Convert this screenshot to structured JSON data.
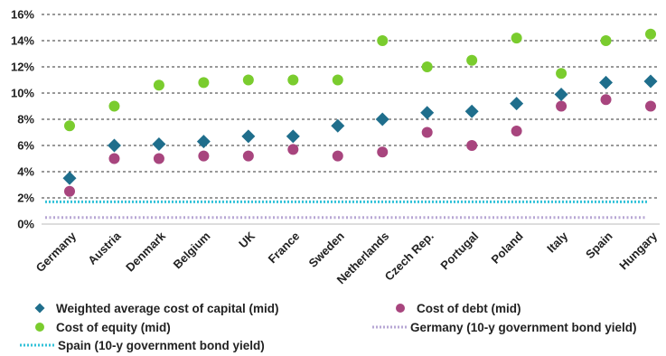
{
  "chart_data": {
    "type": "scatter",
    "categories": [
      "Germany",
      "Austria",
      "Denmark",
      "Belgium",
      "UK",
      "France",
      "Sweden",
      "Netherlands",
      "Czech Rep.",
      "Portugal",
      "Poland",
      "Italy",
      "Spain",
      "Hungary"
    ],
    "y_ticks": [
      "0%",
      "2%",
      "4%",
      "6%",
      "8%",
      "10%",
      "12%",
      "14%",
      "16%"
    ],
    "ylim": [
      0,
      16
    ],
    "grid": "horizontal-dashed",
    "legend_position": "bottom",
    "series": [
      {
        "name": "Weighted average cost of capital (mid)",
        "marker": "diamond",
        "color": "#1f6e8c",
        "values": [
          3.5,
          6.0,
          6.1,
          6.3,
          6.7,
          6.7,
          7.5,
          8.0,
          8.5,
          8.6,
          9.2,
          9.9,
          10.8,
          10.9
        ]
      },
      {
        "name": "Cost of debt (mid)",
        "marker": "circle",
        "color": "#a8457e",
        "values": [
          2.5,
          5.0,
          5.0,
          5.2,
          5.2,
          5.7,
          5.2,
          5.5,
          7.0,
          6.0,
          7.1,
          9.0,
          9.5,
          9.0
        ]
      },
      {
        "name": "Cost of equity (mid)",
        "marker": "circle",
        "color": "#7acc2e",
        "values": [
          7.5,
          9.0,
          10.6,
          10.8,
          11.0,
          11.0,
          11.0,
          14.0,
          12.0,
          12.5,
          14.2,
          11.5,
          14.0,
          14.5
        ]
      },
      {
        "name": "Germany (10-y government bond yield)",
        "marker": "dotted-line",
        "color": "#b7a7d4",
        "values": [
          0.5,
          0.5,
          0.5,
          0.5,
          0.5,
          0.5,
          0.5,
          0.5,
          0.5,
          0.5,
          0.5,
          0.5,
          0.5,
          0.5
        ]
      },
      {
        "name": "Spain (10-y government bond yield)",
        "marker": "dotted-line",
        "color": "#33c2d9",
        "values": [
          1.7,
          1.7,
          1.7,
          1.7,
          1.7,
          1.7,
          1.7,
          1.7,
          1.7,
          1.7,
          1.7,
          1.7,
          1.7,
          1.7
        ]
      }
    ],
    "legend": [
      {
        "label": "Weighted average cost of capital (mid)",
        "series": 0
      },
      {
        "label": "Cost of debt (mid)",
        "series": 1
      },
      {
        "label": "Cost of equity (mid)",
        "series": 2
      },
      {
        "label": "Germany (10-y government bond yield)",
        "series": 3
      },
      {
        "label": "Spain (10-y government bond yield)",
        "series": 4
      }
    ]
  }
}
